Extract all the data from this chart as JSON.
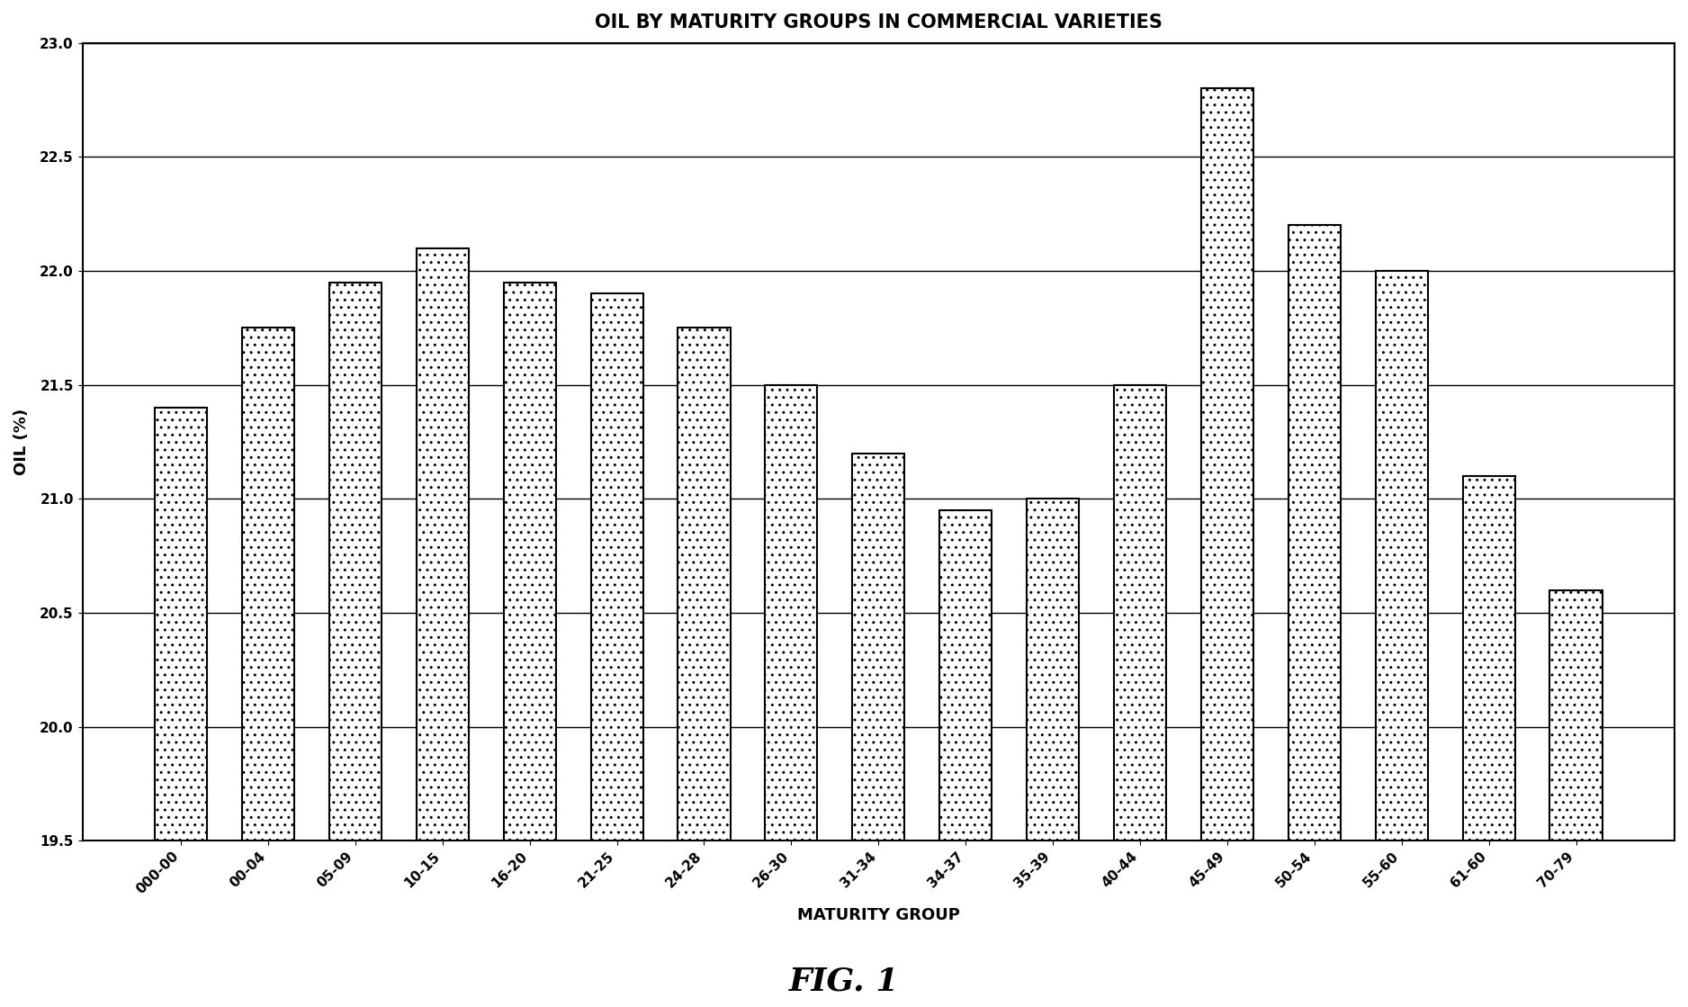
{
  "title": "OIL BY MATURITY GROUPS IN COMMERCIAL VARIETIES",
  "xlabel": "MATURITY GROUP",
  "ylabel": "OIL (%)",
  "categories": [
    "000-00",
    "00-04",
    "05-09",
    "10-15",
    "16-20",
    "21-25",
    "24-28",
    "26-30",
    "31-34",
    "34-37",
    "35-39",
    "40-44",
    "45-49",
    "50-54",
    "55-60",
    "61-60",
    "70-79"
  ],
  "values": [
    21.4,
    21.75,
    21.95,
    22.1,
    21.95,
    21.9,
    21.75,
    21.5,
    21.2,
    20.95,
    21.0,
    21.5,
    22.8,
    22.2,
    22.0,
    21.1,
    20.6
  ],
  "ymin": 19.5,
  "ymax": 23.0,
  "yticks": [
    19.5,
    20.0,
    20.5,
    21.0,
    21.5,
    22.0,
    22.5,
    23.0
  ],
  "bar_color": "#ffffff",
  "bar_edgecolor": "#000000",
  "background_color": "#ffffff",
  "title_fontsize": 15,
  "label_fontsize": 13,
  "tick_fontsize": 11,
  "fig_caption": "FIG. 1",
  "bar_width": 0.6
}
